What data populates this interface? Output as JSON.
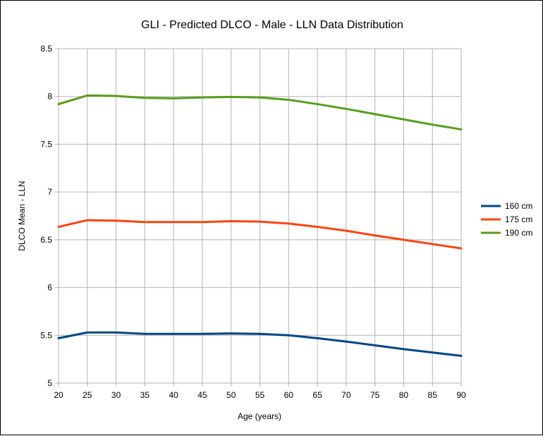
{
  "chart_data": {
    "type": "line",
    "title": "GLI - Predicted DLCO - Male - LLN Data Distribution",
    "xlabel": "Age (years)",
    "ylabel": "DLCO Mean - LLN",
    "x": [
      20,
      25,
      30,
      35,
      40,
      45,
      50,
      55,
      60,
      65,
      70,
      75,
      80,
      85,
      90
    ],
    "xlim": [
      20,
      90
    ],
    "ylim": [
      5,
      8.5
    ],
    "x_ticks": [
      "20",
      "25",
      "30",
      "35",
      "40",
      "45",
      "50",
      "55",
      "60",
      "65",
      "70",
      "75",
      "80",
      "85",
      "90"
    ],
    "y_ticks": [
      "5",
      "5.5",
      "6",
      "6.5",
      "7",
      "7.5",
      "8",
      "8.5"
    ],
    "grid": true,
    "legend_position": "right",
    "series": [
      {
        "name": "160 cm",
        "color": "#004586",
        "values": [
          5.47,
          5.53,
          5.53,
          5.515,
          5.515,
          5.515,
          5.52,
          5.515,
          5.5,
          5.47,
          5.435,
          5.395,
          5.355,
          5.32,
          5.285
        ]
      },
      {
        "name": "175 cm",
        "color": "#ff420e",
        "values": [
          6.635,
          6.705,
          6.7,
          6.685,
          6.685,
          6.685,
          6.695,
          6.69,
          6.67,
          6.635,
          6.595,
          6.545,
          6.5,
          6.455,
          6.41
        ]
      },
      {
        "name": "190 cm",
        "color": "#579d1c",
        "values": [
          7.92,
          8.01,
          8.005,
          7.985,
          7.98,
          7.99,
          7.995,
          7.99,
          7.965,
          7.92,
          7.87,
          7.815,
          7.76,
          7.705,
          7.655
        ]
      }
    ]
  }
}
